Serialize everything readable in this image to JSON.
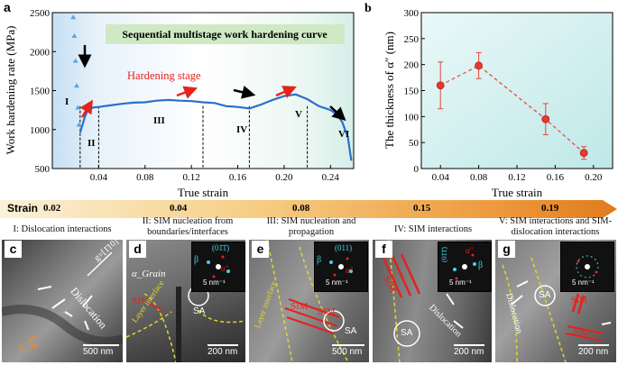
{
  "panel_a": {
    "letter": "a",
    "banner": "Sequential multistage work hardening curve",
    "hardening_label": "Hardening stage",
    "ylabel": "Work hardening rate (MPa)",
    "xlabel": "True strain",
    "yticks": [
      "500",
      "1000",
      "1500",
      "2000",
      "2500"
    ],
    "xticks": [
      "0.04",
      "0.08",
      "0.12",
      "0.16",
      "0.20",
      "0.24"
    ],
    "stages": [
      "I",
      "II",
      "III",
      "IV",
      "V",
      "VI"
    ]
  },
  "panel_b": {
    "letter": "b",
    "ylabel": "The thickness of α″ (nm)",
    "xlabel": "True strain",
    "yticks": [
      "0",
      "50",
      "100",
      "150",
      "200",
      "250",
      "300"
    ],
    "xticks": [
      "0.04",
      "0.08",
      "0.12",
      "0.16",
      "0.20"
    ]
  },
  "strain_bar": {
    "label": "Strain",
    "values": [
      "0.02",
      "0.04",
      "0.08",
      "0.15",
      "0.19"
    ]
  },
  "captions": [
    "I: Dislocation interactions",
    "II: SIM nucleation from boundaries/interfaces",
    "III: SIM nucleation and propagation",
    "IV: SIM interactions",
    "V: SIM interactions and SIM-dislocation interactions"
  ],
  "micrographs": {
    "c": {
      "letter": "c",
      "label_dislocation": "Dislocation",
      "label_g": "g=[1̄10]",
      "label_alpha": "α_int",
      "scale": "500 nm"
    },
    "d": {
      "letter": "d",
      "label_grain": "α_Grain",
      "label_sim": "SIM",
      "label_sa": "SA",
      "label_layer": "Layer interface",
      "scale": "200 nm",
      "inset_scale": "5 nm⁻¹",
      "inset_b": "β",
      "inset_plane": "(01̄1̄)",
      "inset_a": "α″"
    },
    "e": {
      "letter": "e",
      "label_sim1": "SIM",
      "label_sim2": "SIM",
      "label_sa": "SA",
      "label_layer": "Layer interface",
      "scale": "500 nm",
      "inset_scale": "5 nm⁻¹",
      "inset_b": "β",
      "inset_plane": "(011)",
      "inset_a": "α″"
    },
    "f": {
      "letter": "f",
      "label_sim": "SIM",
      "label_sa": "SA",
      "label_disl": "Dislocation",
      "scale": "200 nm",
      "inset_scale": "5 nm⁻¹",
      "inset_b": "β",
      "inset_plane": "(01̄1̄)",
      "inset_a": "α″"
    },
    "g": {
      "letter": "g",
      "label_sim1": "SIM",
      "label_sim2": "SIM",
      "label_sa": "SA",
      "label_disl": "Dislocation",
      "scale": "200 nm",
      "inset_scale": "5 nm⁻¹"
    }
  },
  "chart_data": [
    {
      "type": "line",
      "title": "Sequential multistage work hardening curve",
      "xlabel": "True strain",
      "ylabel": "Work hardening rate (MPa)",
      "xlim": [
        0,
        0.26
      ],
      "ylim": [
        500,
        2500
      ],
      "stage_boundaries": [
        0.024,
        0.04,
        0.13,
        0.17,
        0.22
      ],
      "series": [
        {
          "name": "",
          "x": [
            0.018,
            0.019,
            0.02,
            0.021,
            0.022,
            0.023,
            0.024,
            0.026,
            0.028,
            0.03,
            0.033,
            0.036,
            0.04,
            0.05,
            0.06,
            0.07,
            0.08,
            0.09,
            0.1,
            0.11,
            0.12,
            0.13,
            0.14,
            0.15,
            0.16,
            0.17,
            0.18,
            0.19,
            0.2,
            0.205,
            0.21,
            0.215,
            0.22,
            0.23,
            0.24,
            0.245,
            0.25,
            0.255,
            0.258
          ],
          "y": [
            2440,
            2200,
            1880,
            1560,
            1280,
            1060,
            960,
            1060,
            1160,
            1230,
            1270,
            1285,
            1290,
            1310,
            1330,
            1345,
            1350,
            1370,
            1380,
            1370,
            1365,
            1350,
            1340,
            1300,
            1290,
            1270,
            1320,
            1380,
            1430,
            1440,
            1450,
            1420,
            1390,
            1300,
            1250,
            1200,
            1100,
            900,
            600
          ]
        }
      ]
    },
    {
      "type": "scatter",
      "xlabel": "True strain",
      "ylabel": "The thickness of α″ (nm)",
      "xlim": [
        0.02,
        0.22
      ],
      "ylim": [
        0,
        300
      ],
      "series": [
        {
          "name": "",
          "x": [
            0.04,
            0.08,
            0.15,
            0.19
          ],
          "y": [
            160,
            198,
            95,
            30
          ],
          "err": [
            45,
            25,
            30,
            12
          ]
        }
      ]
    }
  ]
}
